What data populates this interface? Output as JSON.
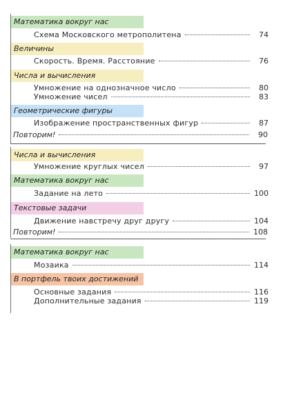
{
  "sections": [
    {
      "heading": "Математика вокруг нас",
      "entries": [
        {
          "title": "Схема Московского метрополитена",
          "page": "74"
        }
      ]
    },
    {
      "heading": "Величины",
      "entries": [
        {
          "title": "Скорость. Время. Расстояние",
          "page": "76"
        }
      ]
    },
    {
      "heading": "Числа и вычисления",
      "entries": [
        {
          "title": "Умножение на однозначное число",
          "page": "80"
        },
        {
          "title": "Умножение чисел",
          "page": "83"
        }
      ]
    },
    {
      "heading": "Геометрические фигуры",
      "entries": [
        {
          "title": "Изображение пространственных фигур",
          "page": "87"
        }
      ]
    },
    {
      "review": "Повторим!",
      "page": "90"
    },
    {
      "heading": "Числа и вычисления",
      "entries": [
        {
          "title": "Умножение круглых чисел",
          "page": "97"
        }
      ]
    },
    {
      "heading": "Математика вокруг нас",
      "entries": [
        {
          "title": "Задание на лето",
          "page": "100"
        }
      ]
    },
    {
      "heading": "Текстовые задачи",
      "entries": [
        {
          "title": "Движение навстречу друг другу",
          "page": "104"
        }
      ]
    },
    {
      "review": "Повторим!",
      "page": "108"
    },
    {
      "heading": "Математика вокруг нас",
      "entries": [
        {
          "title": "Мозаика",
          "page": "114"
        }
      ]
    },
    {
      "heading": "В портфель твоих достижений",
      "entries": [
        {
          "title": "Основные задания",
          "page": "116"
        },
        {
          "title": "Дополнительные задания",
          "page": "119"
        }
      ]
    }
  ]
}
